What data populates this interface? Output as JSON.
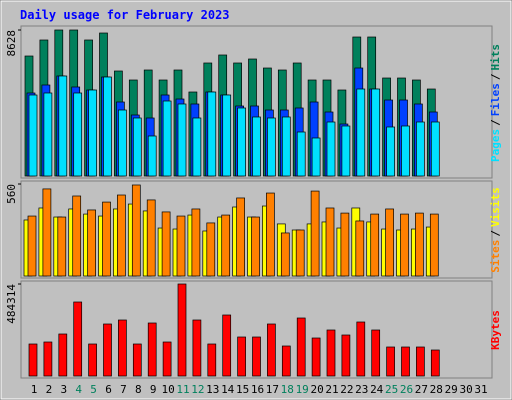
{
  "chart_data": [
    {
      "type": "bar",
      "title": "Daily usage for February 2023",
      "title_color": "#0000FF",
      "legend_separator": "/",
      "ylim": [
        0,
        8628
      ],
      "yticks": [
        8628
      ],
      "series": [
        {
          "name": "Hits",
          "color": "#00805C",
          "values": [
            7091,
            8037,
            8628,
            8628,
            8037,
            8450,
            6205,
            5673,
            6264,
            5673,
            6264,
            4964,
            6678,
            7151,
            6678,
            6914,
            6382,
            6264,
            6678,
            5673,
            5673,
            5082,
            8214,
            8214,
            5791,
            5791,
            5673,
            5141,
            null,
            null,
            null
          ]
        },
        {
          "name": "Files",
          "color": "#0040FF",
          "values": [
            4905,
            5378,
            5910,
            5260,
            5082,
            5850,
            4373,
            3605,
            3428,
            4787,
            4550,
            4255,
            4964,
            4787,
            4137,
            4137,
            3900,
            3900,
            4019,
            4373,
            3782,
            3073,
            6382,
            5141,
            4491,
            4491,
            4255,
            3782,
            null,
            null,
            null
          ]
        },
        {
          "name": "Pages",
          "color": "#00E0FF",
          "values": [
            4787,
            4905,
            5910,
            4905,
            5082,
            5850,
            3900,
            3428,
            2364,
            4432,
            4255,
            3428,
            4964,
            4787,
            4019,
            3487,
            3428,
            3487,
            2600,
            2246,
            3191,
            2955,
            5141,
            5141,
            2896,
            2955,
            3191,
            3191,
            null,
            null,
            null
          ]
        }
      ]
    },
    {
      "type": "bar",
      "legend_separator": "/",
      "ylim": [
        0,
        560
      ],
      "yticks": [
        560
      ],
      "series": [
        {
          "name": "Visits",
          "color": "#FFFF00",
          "values": [
            341,
            414,
            359,
            408,
            377,
            365,
            408,
            438,
            396,
            292,
            286,
            371,
            274,
            359,
            420,
            359,
            426,
            317,
            280,
            317,
            329,
            292,
            414,
            329,
            286,
            280,
            286,
            298,
            null,
            null,
            null
          ]
        },
        {
          "name": "Sites",
          "color": "#FF8000",
          "values": [
            365,
            530,
            359,
            487,
            402,
            450,
            493,
            554,
            463,
            390,
            365,
            408,
            323,
            371,
            475,
            359,
            505,
            262,
            280,
            517,
            414,
            383,
            335,
            377,
            408,
            377,
            383,
            377,
            null,
            null,
            null
          ]
        }
      ]
    },
    {
      "type": "bar",
      "ylim": [
        0,
        484314
      ],
      "yticks": [
        484314
      ],
      "categories": [
        "1",
        "2",
        "3",
        "4",
        "5",
        "6",
        "7",
        "8",
        "9",
        "10",
        "11",
        "12",
        "13",
        "14",
        "15",
        "16",
        "17",
        "18",
        "19",
        "20",
        "21",
        "22",
        "23",
        "24",
        "25",
        "26",
        "27",
        "28",
        "29",
        "30",
        "31"
      ],
      "label_colors": [
        "#000000",
        "#000000",
        "#000000",
        "#00805C",
        "#00805C",
        "#000000",
        "#000000",
        "#000000",
        "#000000",
        "#000000",
        "#00805C",
        "#00805C",
        "#000000",
        "#000000",
        "#000000",
        "#000000",
        "#000000",
        "#00805C",
        "#00805C",
        "#000000",
        "#000000",
        "#000000",
        "#000000",
        "#000000",
        "#00805C",
        "#00805C",
        "#000000",
        "#000000",
        "#000000",
        "#000000",
        "#000000"
      ],
      "series": [
        {
          "name": "KBytes",
          "color": "#FF0000",
          "values": [
            168457,
            178985,
            221100,
            389557,
            168457,
            273742,
            294800,
            168457,
            279006,
            178985,
            484314,
            294800,
            168457,
            321121,
            205307,
            205307,
            273742,
            157928,
            305328,
            200043,
            242157,
            215835,
            284271,
            242157,
            152664,
            152664,
            152664,
            136872,
            null,
            null,
            null
          ]
        }
      ]
    }
  ]
}
